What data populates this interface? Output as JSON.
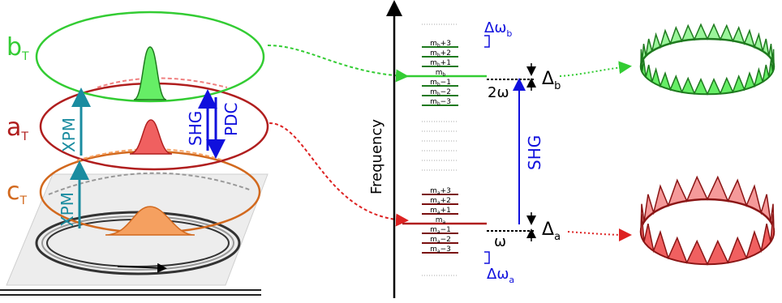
{
  "colors": {
    "green": "#33cc33",
    "green_fill": "#66ee66",
    "dark_green": "#1e7a1e",
    "red": "#b01e1e",
    "red_fill": "#f06060",
    "dark_red": "#7a1010",
    "orange": "#d2691e",
    "orange_fill": "#f5a060",
    "teal": "#1a8ca0",
    "blue": "#1010dd",
    "gray": "#888888"
  },
  "left": {
    "b_label": "b",
    "b_sub": "T",
    "a_label": "a",
    "a_sub": "T",
    "c_label": "c",
    "c_sub": "T",
    "xpm_upper": "XPM",
    "xpm_lower": "XPM",
    "shg": "SHG",
    "pdc": "PDC"
  },
  "axis": {
    "label": "Frequency"
  },
  "upper_modes": {
    "labels": [
      "mb+3",
      "mb+2",
      "mb+1",
      "mb",
      "mb−1",
      "mb−2",
      "mb−3"
    ],
    "base": "m",
    "sub": "b",
    "suffixes": [
      "+3",
      "+2",
      "+1",
      "",
      "−1",
      "−2",
      "−3"
    ],
    "spacing_label": "Δω",
    "spacing_sub": "b",
    "detuning_label": "Δ",
    "detuning_sub": "b",
    "pump_label": "2ω"
  },
  "lower_modes": {
    "base": "m",
    "sub": "a",
    "suffixes": [
      "+3",
      "+2",
      "+1",
      "",
      "−1",
      "−2",
      "−3"
    ],
    "spacing_label": "Δω",
    "spacing_sub": "a",
    "detuning_label": "Δ",
    "detuning_sub": "a",
    "pump_label": "ω"
  },
  "middle": {
    "shg": "SHG"
  }
}
